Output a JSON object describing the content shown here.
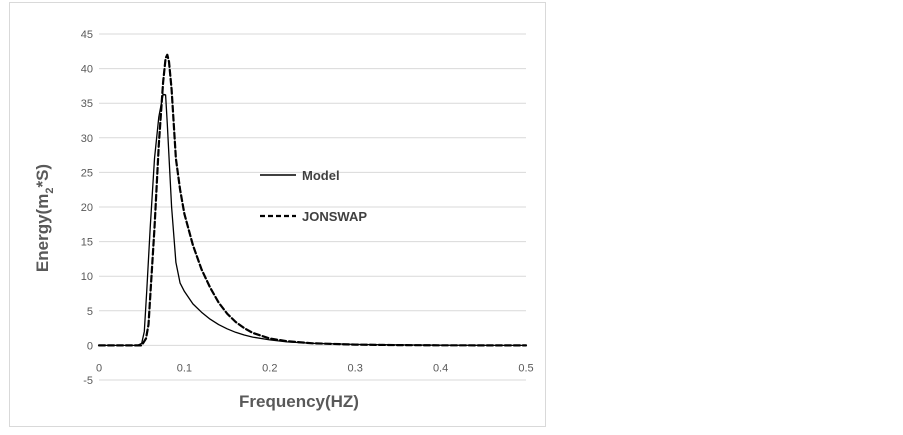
{
  "chart_data": {
    "type": "line",
    "title": "",
    "xlabel": "Frequency(HZ)",
    "ylabel_main": "Energy(m",
    "ylabel_sub": "2",
    "ylabel_tail": "*S)",
    "xlim": [
      0,
      0.5
    ],
    "ylim": [
      -5,
      45
    ],
    "x_ticks": [
      0,
      0.1,
      0.2,
      0.3,
      0.4,
      0.5
    ],
    "x_tick_labels": [
      "0",
      "0.1",
      "0.2",
      "0.3",
      "0.4",
      "0.5"
    ],
    "y_ticks": [
      -5,
      0,
      5,
      10,
      15,
      20,
      25,
      30,
      35,
      40,
      45
    ],
    "y_tick_labels": [
      "-5",
      "0",
      "5",
      "10",
      "15",
      "20",
      "25",
      "30",
      "35",
      "40",
      "45"
    ],
    "grid": "horizontal",
    "legend_position": "center-right",
    "series": [
      {
        "name": "Model",
        "style": "solid",
        "color": "#000000",
        "x": [
          0,
          0.045,
          0.05,
          0.053,
          0.056,
          0.06,
          0.065,
          0.07,
          0.075,
          0.078,
          0.08,
          0.085,
          0.09,
          0.095,
          0.1,
          0.11,
          0.12,
          0.13,
          0.14,
          0.15,
          0.16,
          0.17,
          0.18,
          0.2,
          0.22,
          0.25,
          0.3,
          0.35,
          0.4,
          0.5
        ],
        "y": [
          0,
          0,
          0.3,
          2,
          8,
          17,
          27,
          33,
          36.3,
          36.2,
          32,
          20,
          12,
          9,
          7.8,
          6,
          4.8,
          3.8,
          3,
          2.4,
          1.9,
          1.5,
          1.2,
          0.8,
          0.5,
          0.3,
          0.15,
          0.07,
          0.03,
          0
        ]
      },
      {
        "name": "JONSWAP",
        "style": "dashed",
        "color": "#000000",
        "x": [
          0,
          0.05,
          0.055,
          0.058,
          0.06,
          0.065,
          0.07,
          0.075,
          0.078,
          0.08,
          0.082,
          0.085,
          0.09,
          0.095,
          0.1,
          0.11,
          0.12,
          0.13,
          0.14,
          0.15,
          0.16,
          0.17,
          0.18,
          0.2,
          0.22,
          0.25,
          0.3,
          0.35,
          0.4,
          0.5
        ],
        "y": [
          0,
          0,
          1,
          3,
          7,
          17,
          29,
          38,
          41.5,
          42,
          41,
          37,
          27,
          22.5,
          19,
          14.5,
          11,
          8.4,
          6.2,
          4.6,
          3.4,
          2.5,
          1.8,
          1,
          0.6,
          0.3,
          0.12,
          0.05,
          0.02,
          0
        ]
      }
    ]
  }
}
